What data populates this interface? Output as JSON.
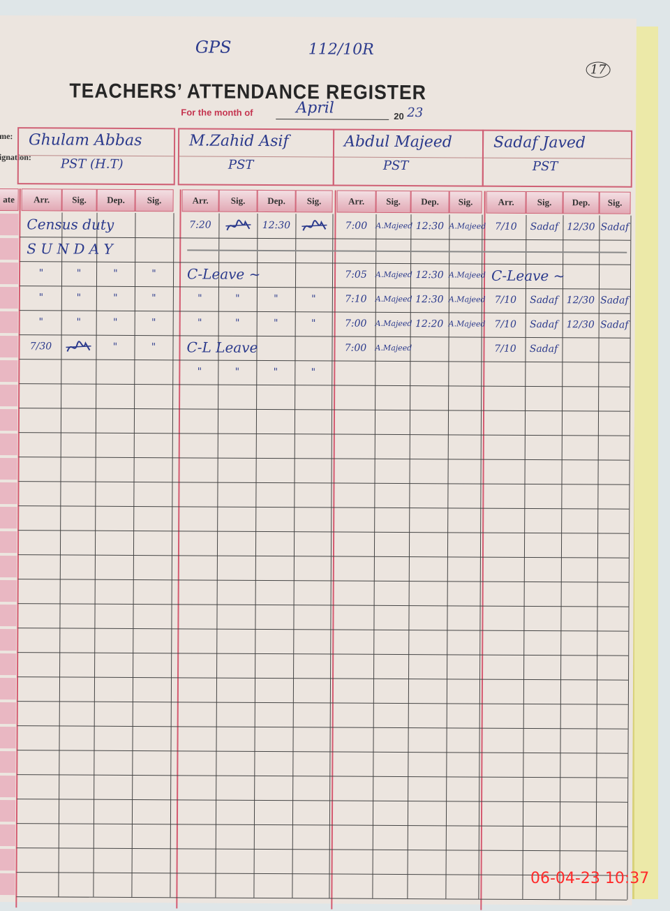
{
  "header": {
    "school": "GPS",
    "school_code": "112/10R",
    "page_number": "17",
    "title": "TEACHERS’ ATTENDANCE REGISTER",
    "month_label": "For the month of",
    "month_value": "April",
    "year_prefix": "20",
    "year_suffix": "23",
    "name_label": "me:",
    "designation_label": "ignation:",
    "date_label": "ate"
  },
  "teachers": [
    {
      "name": "Ghulam Abbas",
      "designation": "PST (H.T)"
    },
    {
      "name": "M.Zahid Asif",
      "designation": "PST"
    },
    {
      "name": "Abdul Majeed",
      "designation": "PST"
    },
    {
      "name": "Sadaf Javed",
      "designation": "PST"
    }
  ],
  "column_headers": [
    "Arr.",
    "Sig.",
    "Dep.",
    "Sig."
  ],
  "rows": [
    [
      {
        "c": 1,
        "s": 4,
        "t": "Census duty"
      },
      {
        "c": 5,
        "t": "7:20"
      },
      {
        "c": 6,
        "sig": true
      },
      {
        "c": 7,
        "t": "12:30"
      },
      {
        "c": 8,
        "sig": true
      },
      {
        "c": 9,
        "t": "7:00"
      },
      {
        "c": 10,
        "t": "A.Majeed"
      },
      {
        "c": 11,
        "t": "12:30"
      },
      {
        "c": 12,
        "t": "A.Majeed"
      },
      {
        "c": 13,
        "t": "7/10"
      },
      {
        "c": 14,
        "t": "Sadaf"
      },
      {
        "c": 15,
        "t": "12/30"
      },
      {
        "c": 16,
        "t": "Sadaf"
      }
    ],
    [
      {
        "c": 1,
        "s": 4,
        "t": "S U N D A Y"
      }
    ],
    [
      {
        "c": 1,
        "t": "\""
      },
      {
        "c": 2,
        "t": "\""
      },
      {
        "c": 3,
        "t": "\""
      },
      {
        "c": 4,
        "t": "\""
      },
      {
        "c": 5,
        "s": 4,
        "t": "C-Leave ~"
      },
      {
        "c": 9,
        "t": "7:05"
      },
      {
        "c": 10,
        "t": "A.Majeed"
      },
      {
        "c": 11,
        "t": "12:30"
      },
      {
        "c": 12,
        "t": "A.Majeed"
      },
      {
        "c": 13,
        "s": 4,
        "t": "C-Leave ~"
      }
    ],
    [
      {
        "c": 1,
        "t": "\""
      },
      {
        "c": 2,
        "t": "\""
      },
      {
        "c": 3,
        "t": "\""
      },
      {
        "c": 4,
        "t": "\""
      },
      {
        "c": 5,
        "t": "\""
      },
      {
        "c": 6,
        "t": "\""
      },
      {
        "c": 7,
        "t": "\""
      },
      {
        "c": 8,
        "t": "\""
      },
      {
        "c": 9,
        "t": "7:10"
      },
      {
        "c": 10,
        "t": "A.Majeed"
      },
      {
        "c": 11,
        "t": "12:30"
      },
      {
        "c": 12,
        "t": "A.Majeed"
      },
      {
        "c": 13,
        "t": "7/10"
      },
      {
        "c": 14,
        "t": "Sadaf"
      },
      {
        "c": 15,
        "t": "12/30"
      },
      {
        "c": 16,
        "t": "Sadaf"
      }
    ],
    [
      {
        "c": 1,
        "t": "\""
      },
      {
        "c": 2,
        "t": "\""
      },
      {
        "c": 3,
        "t": "\""
      },
      {
        "c": 4,
        "t": "\""
      },
      {
        "c": 5,
        "t": "\""
      },
      {
        "c": 6,
        "t": "\""
      },
      {
        "c": 7,
        "t": "\""
      },
      {
        "c": 8,
        "t": "\""
      },
      {
        "c": 9,
        "t": "7:00"
      },
      {
        "c": 10,
        "t": "A.Majeed"
      },
      {
        "c": 11,
        "t": "12:20"
      },
      {
        "c": 12,
        "t": "A.Majeed"
      },
      {
        "c": 13,
        "t": "7/10"
      },
      {
        "c": 14,
        "t": "Sadaf"
      },
      {
        "c": 15,
        "t": "12/30"
      },
      {
        "c": 16,
        "t": "Sadaf"
      }
    ],
    [
      {
        "c": 1,
        "t": "7/30"
      },
      {
        "c": 2,
        "sig": true
      },
      {
        "c": 3,
        "t": "\""
      },
      {
        "c": 4,
        "t": "\""
      },
      {
        "c": 5,
        "s": 4,
        "t": "C-L   Leave"
      },
      {
        "c": 9,
        "t": "7:00"
      },
      {
        "c": 10,
        "t": "A.Majeed"
      },
      {
        "c": 13,
        "t": "7/10"
      },
      {
        "c": 14,
        "t": "Sadaf"
      }
    ],
    [
      {
        "c": 5,
        "t": "\""
      },
      {
        "c": 6,
        "t": "\""
      },
      {
        "c": 7,
        "t": "\""
      },
      {
        "c": 8,
        "t": "\""
      }
    ]
  ],
  "timestamp": "06-04-23  10:37",
  "colors": {
    "ink": "#2b3a8c",
    "print_red": "#c4344f",
    "stamp": "#ff2a2a"
  }
}
